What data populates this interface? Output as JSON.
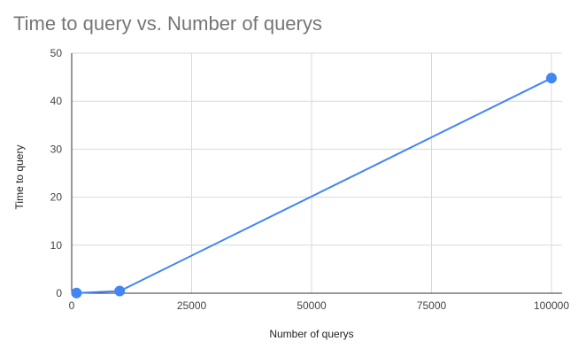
{
  "chart_data": {
    "type": "line",
    "title": "Time to query vs. Number of querys",
    "xlabel": "Number of querys",
    "ylabel": "Time to query",
    "x": [
      1000,
      10000,
      100000
    ],
    "series": [
      {
        "values": [
          0.05,
          0.45,
          44.8
        ],
        "color": "#4285f4"
      }
    ],
    "xlim": [
      0,
      100000
    ],
    "ylim": [
      0,
      50
    ],
    "x_ticks": [
      0,
      25000,
      50000,
      75000,
      100000
    ],
    "y_ticks": [
      0,
      10,
      20,
      30,
      40,
      50
    ],
    "x_tick_labels": [
      "0",
      "25000",
      "50000",
      "75000",
      "100000"
    ],
    "y_tick_labels": [
      "0",
      "10",
      "20",
      "30",
      "40",
      "50"
    ],
    "grid": true,
    "markers": true,
    "legend": "none"
  }
}
